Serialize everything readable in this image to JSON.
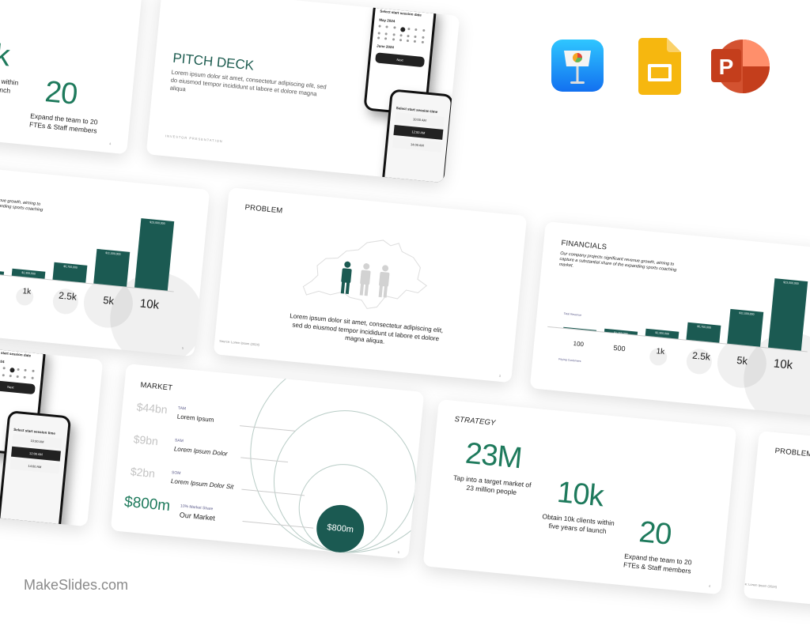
{
  "brand": "MakeSlides.com",
  "app_icons": [
    "keynote-icon",
    "google-slides-icon",
    "powerpoint-icon"
  ],
  "colors": {
    "accent_dark": "#1b5a52",
    "accent_text": "#1e7a5c",
    "muted": "#c4c4c4"
  },
  "strategy": {
    "title": "STRATEGY",
    "stats": [
      {
        "value": "23M",
        "desc": "Tap into a target market of 23 million people"
      },
      {
        "value": "10k",
        "desc": "Obtain 10k clients within five years of launch"
      },
      {
        "value": "20",
        "desc": "Expand the team to 20 FTEs & Staff members"
      }
    ],
    "page": "4"
  },
  "pitch": {
    "title": "PITCH DECK",
    "body": "Lorem ipsum dolor sit amet, consectetur adipiscing elit, sed do eiusmod tempor incididunt ut labore et dolore magna aliqua",
    "footer": "INVESTOR PRESENTATION",
    "phone1": {
      "heading": "Select start session date",
      "month1": "May 2024",
      "month2": "June 2024",
      "button": "Next"
    },
    "phone2": {
      "heading": "Select start session time",
      "options": [
        "10:00 AM",
        "12:00 AM",
        "14:00 AM"
      ]
    }
  },
  "financials": {
    "title": "FINANCIALS",
    "desc": "Our company projects significant revenue growth, aiming to capture a substantial share of the expanding sports coaching market.",
    "revenue_label": "Total Revenue",
    "customers_label": "Paying Customers",
    "page": "5",
    "bars": [
      {
        "customers": "100",
        "revenue": 115000,
        "label": ""
      },
      {
        "customers": "500",
        "revenue": 1150000,
        "label": "$1,150,000"
      },
      {
        "customers": "1k",
        "revenue": 2300000,
        "label": "$2,300,000"
      },
      {
        "customers": "2.5k",
        "revenue": 5750000,
        "label": "$5,750,000"
      },
      {
        "customers": "5k",
        "revenue": 11500000,
        "label": "$11,500,000"
      },
      {
        "customers": "10k",
        "revenue": 23000000,
        "label": "$23,000,000"
      }
    ]
  },
  "problem": {
    "title": "PROBLEM",
    "body": "Lorem ipsum dolor sit amet, consectetur adipiscing elit, sed do eiusmod tempor incididunt ut labore et dolore magna aliqua.",
    "source": "Source: Lorem Ipsum (2024)",
    "page": "3"
  },
  "market": {
    "title": "MARKET",
    "rows": [
      {
        "value": "$44bn",
        "tag": "TAM",
        "name": "Lorem Ipsum"
      },
      {
        "value": "$9bn",
        "tag": "SAM",
        "name": "Lorem Ipsum Dolor"
      },
      {
        "value": "$2bn",
        "tag": "SOM",
        "name": "Lorem Ipsum Dolor Sit"
      },
      {
        "value": "$800m",
        "tag": "10% Market Share",
        "name": "Our Market"
      }
    ],
    "circle_value": "$800m",
    "page": "6"
  }
}
